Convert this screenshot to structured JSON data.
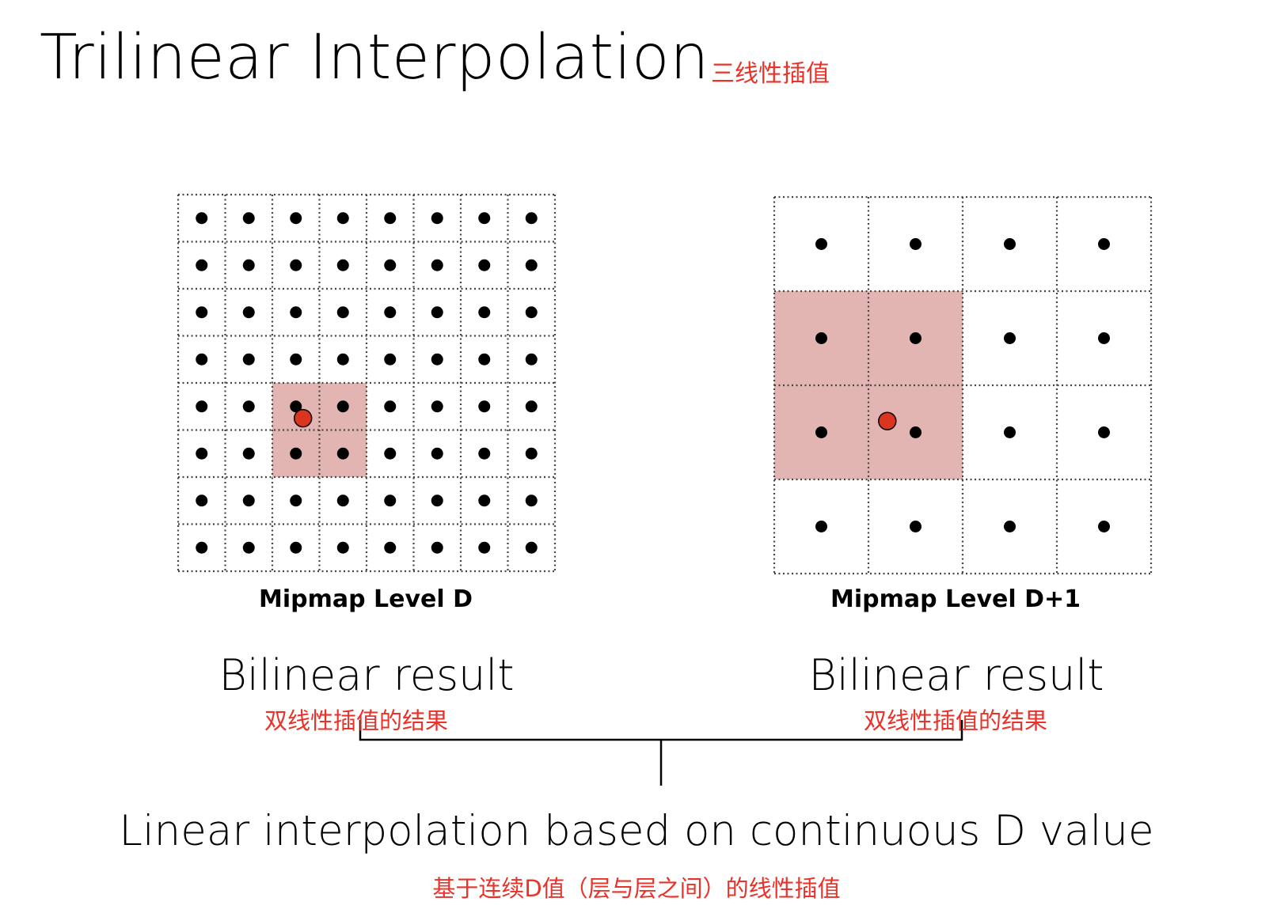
{
  "title": "Trilinear Interpolation",
  "title_cn": "三线性插值",
  "left_grid": {
    "label": "Mipmap Level D",
    "cells": 8,
    "highlight": {
      "col_start": 2,
      "row_start": 4,
      "cols": 2,
      "rows": 2
    },
    "sample_point": {
      "col": 2.65,
      "row": 4.75
    }
  },
  "right_grid": {
    "label": "Mipmap Level D+1",
    "cells": 4,
    "highlight": {
      "col_start": 0,
      "row_start": 1,
      "cols": 2,
      "rows": 2
    },
    "sample_point": {
      "col": 1.2,
      "row": 2.38
    }
  },
  "left_result": {
    "text": "Bilinear result",
    "cn": "双线性插值的结果"
  },
  "right_result": {
    "text": "Bilinear result",
    "cn": "双线性插值的结果"
  },
  "bottom": {
    "text": "Linear interpolation based on continuous D value",
    "cn": "基于连续D值（层与层之间）的线性插值"
  },
  "colors": {
    "highlight": "#e3b5b2",
    "sample": "#d9351f",
    "annotation": "#e8322a"
  }
}
